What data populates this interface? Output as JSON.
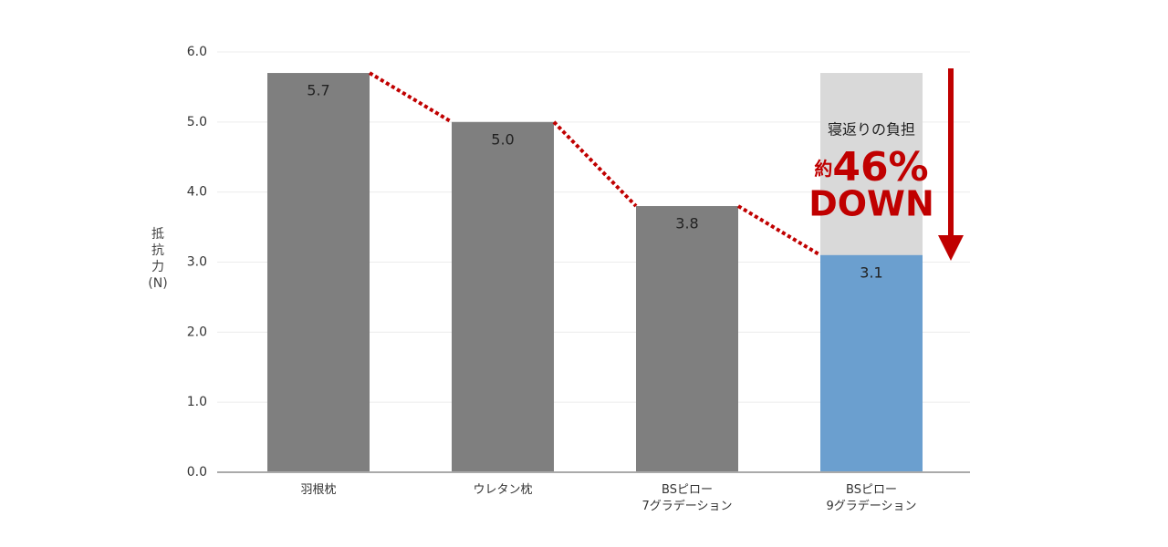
{
  "chart_data": {
    "type": "bar",
    "y_label": "抵抗力(N)",
    "categories": [
      "羽根枕",
      "ウレタン枕",
      "BSピロー\n7グラデーション",
      "BSピロー\n9グラデーション"
    ],
    "values": [
      5.7,
      5.0,
      3.8,
      3.1
    ],
    "value_labels": [
      "5.7",
      "5.0",
      "3.8",
      "3.1"
    ],
    "colors": [
      "#7f7f7f",
      "#7f7f7f",
      "#7f7f7f",
      "#6b9fcf"
    ],
    "reference_color": "#d9d9d9",
    "connector_color": "#c00000",
    "ylim": [
      0,
      6
    ],
    "yticks": [
      {
        "value": 0,
        "label": "0.0"
      },
      {
        "value": 1,
        "label": "1.0"
      },
      {
        "value": 2,
        "label": "2.0"
      },
      {
        "value": 3,
        "label": "3.0"
      },
      {
        "value": 4,
        "label": "4.0"
      },
      {
        "value": 5,
        "label": "5.0"
      },
      {
        "value": 6,
        "label": "6.0"
      }
    ],
    "grid": true,
    "annotation": {
      "text": "寝返りの負担",
      "prefix": "約",
      "value": "46%",
      "suffix": "DOWN"
    }
  }
}
